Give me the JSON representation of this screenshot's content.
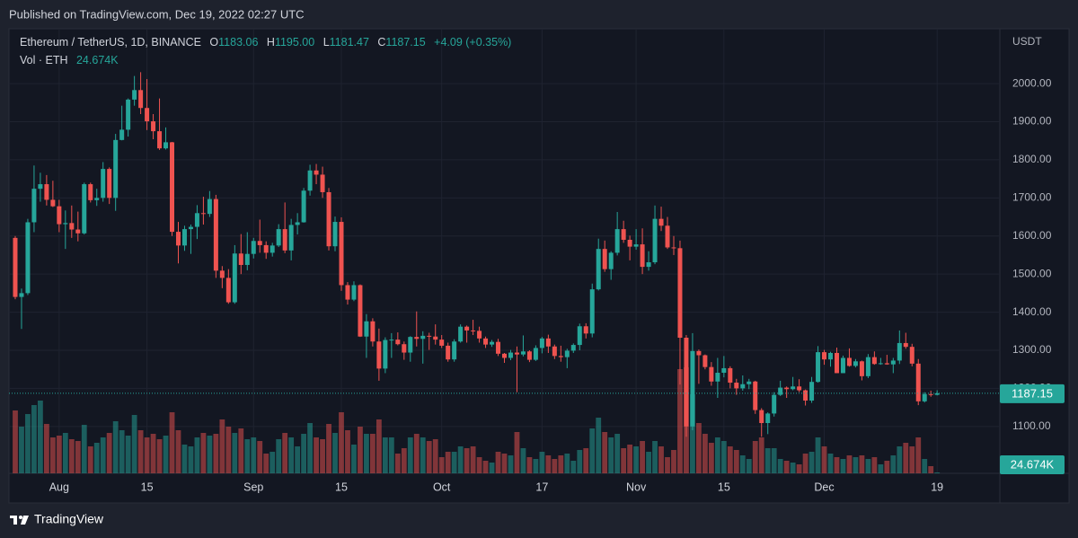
{
  "header": {
    "published": "Published on TradingView.com, Dec 19, 2022 02:27 UTC"
  },
  "footer": {
    "brand": "TradingView"
  },
  "chart_data": {
    "type": "candlestick",
    "title": "Ethereum / TetherUS, 1D, BINANCE",
    "legend": [
      {
        "key": "O",
        "label": "1183.06"
      },
      {
        "key": "H",
        "label": "1195.00"
      },
      {
        "key": "L",
        "label": "1181.47"
      },
      {
        "key": "C",
        "label": "1187.15"
      }
    ],
    "change": "+4.09 (+0.35%)",
    "axis_unit": "USDT",
    "up_color": "#26a69a",
    "down_color": "#ef5350",
    "grid": true,
    "x": [
      "2022-07-25",
      "2022-07-26",
      "2022-07-27",
      "2022-07-28",
      "2022-07-29",
      "2022-07-30",
      "2022-07-31",
      "2022-08-01",
      "2022-08-02",
      "2022-08-03",
      "2022-08-04",
      "2022-08-05",
      "2022-08-06",
      "2022-08-07",
      "2022-08-08",
      "2022-08-09",
      "2022-08-10",
      "2022-08-11",
      "2022-08-12",
      "2022-08-13",
      "2022-08-14",
      "2022-08-15",
      "2022-08-16",
      "2022-08-17",
      "2022-08-18",
      "2022-08-19",
      "2022-08-20",
      "2022-08-21",
      "2022-08-22",
      "2022-08-23",
      "2022-08-24",
      "2022-08-25",
      "2022-08-26",
      "2022-08-27",
      "2022-08-28",
      "2022-08-29",
      "2022-08-30",
      "2022-08-31",
      "2022-09-01",
      "2022-09-02",
      "2022-09-03",
      "2022-09-04",
      "2022-09-05",
      "2022-09-06",
      "2022-09-07",
      "2022-09-08",
      "2022-09-09",
      "2022-09-10",
      "2022-09-11",
      "2022-09-12",
      "2022-09-13",
      "2022-09-14",
      "2022-09-15",
      "2022-09-16",
      "2022-09-17",
      "2022-09-18",
      "2022-09-19",
      "2022-09-20",
      "2022-09-21",
      "2022-09-22",
      "2022-09-23",
      "2022-09-24",
      "2022-09-25",
      "2022-09-26",
      "2022-09-27",
      "2022-09-28",
      "2022-09-29",
      "2022-09-30",
      "2022-10-01",
      "2022-10-02",
      "2022-10-03",
      "2022-10-04",
      "2022-10-05",
      "2022-10-06",
      "2022-10-07",
      "2022-10-08",
      "2022-10-09",
      "2022-10-10",
      "2022-10-11",
      "2022-10-12",
      "2022-10-13",
      "2022-10-14",
      "2022-10-15",
      "2022-10-16",
      "2022-10-17",
      "2022-10-18",
      "2022-10-19",
      "2022-10-20",
      "2022-10-21",
      "2022-10-22",
      "2022-10-23",
      "2022-10-24",
      "2022-10-25",
      "2022-10-26",
      "2022-10-27",
      "2022-10-28",
      "2022-10-29",
      "2022-10-30",
      "2022-10-31",
      "2022-11-01",
      "2022-11-02",
      "2022-11-03",
      "2022-11-04",
      "2022-11-05",
      "2022-11-06",
      "2022-11-07",
      "2022-11-08",
      "2022-11-09",
      "2022-11-10",
      "2022-11-11",
      "2022-11-12",
      "2022-11-13",
      "2022-11-14",
      "2022-11-15",
      "2022-11-16",
      "2022-11-17",
      "2022-11-18",
      "2022-11-19",
      "2022-11-20",
      "2022-11-21",
      "2022-11-22",
      "2022-11-23",
      "2022-11-24",
      "2022-11-25",
      "2022-11-26",
      "2022-11-27",
      "2022-11-28",
      "2022-11-29",
      "2022-11-30",
      "2022-12-01",
      "2022-12-02",
      "2022-12-03",
      "2022-12-04",
      "2022-12-05",
      "2022-12-06",
      "2022-12-07",
      "2022-12-08",
      "2022-12-09",
      "2022-12-10",
      "2022-12-11",
      "2022-12-12",
      "2022-12-13",
      "2022-12-14",
      "2022-12-15",
      "2022-12-16",
      "2022-12-17",
      "2022-12-18",
      "2022-12-19"
    ],
    "open": [
      1595,
      1440,
      1450,
      1636,
      1724,
      1736,
      1695,
      1678,
      1631,
      1634,
      1617,
      1607,
      1736,
      1694,
      1700,
      1776,
      1700,
      1852,
      1879,
      1958,
      1983,
      1936,
      1901,
      1875,
      1830,
      1846,
      1611,
      1575,
      1618,
      1624,
      1660,
      1658,
      1697,
      1509,
      1490,
      1426,
      1554,
      1524,
      1553,
      1587,
      1576,
      1556,
      1575,
      1618,
      1562,
      1629,
      1636,
      1719,
      1772,
      1761,
      1715,
      1573,
      1637,
      1471,
      1433,
      1471,
      1336,
      1376,
      1323,
      1252,
      1327,
      1328,
      1316,
      1294,
      1335,
      1330,
      1338,
      1336,
      1328,
      1312,
      1276,
      1323,
      1362,
      1352,
      1351,
      1331,
      1315,
      1322,
      1291,
      1280,
      1294,
      1289,
      1297,
      1275,
      1306,
      1331,
      1310,
      1285,
      1282,
      1299,
      1314,
      1363,
      1344,
      1460,
      1566,
      1513,
      1556,
      1618,
      1590,
      1572,
      1578,
      1519,
      1531,
      1645,
      1627,
      1570,
      1568,
      1333,
      1100,
      1298,
      1287,
      1256,
      1218,
      1241,
      1253,
      1215,
      1200,
      1211,
      1218,
      1143,
      1109,
      1134,
      1183,
      1202,
      1198,
      1205,
      1195,
      1168,
      1217,
      1295,
      1276,
      1293,
      1240,
      1280,
      1259,
      1271,
      1232,
      1282,
      1264,
      1266,
      1263,
      1273,
      1319,
      1309,
      1265,
      1166,
      1185,
      1183.06
    ],
    "high": [
      1600,
      1462,
      1645,
      1785,
      1766,
      1760,
      1745,
      1695,
      1667,
      1680,
      1664,
      1740,
      1740,
      1724,
      1794,
      1780,
      1868,
      1942,
      1961,
      2020,
      2030,
      2012,
      1920,
      1961,
      1885,
      1847,
      1637,
      1627,
      1630,
      1681,
      1703,
      1718,
      1708,
      1521,
      1513,
      1576,
      1605,
      1610,
      1595,
      1643,
      1586,
      1582,
      1631,
      1688,
      1645,
      1660,
      1726,
      1787,
      1789,
      1782,
      1726,
      1651,
      1649,
      1479,
      1481,
      1473,
      1395,
      1384,
      1357,
      1334,
      1345,
      1347,
      1323,
      1337,
      1402,
      1350,
      1346,
      1368,
      1340,
      1320,
      1329,
      1368,
      1365,
      1380,
      1362,
      1336,
      1327,
      1330,
      1293,
      1301,
      1310,
      1339,
      1300,
      1313,
      1335,
      1341,
      1315,
      1312,
      1304,
      1318,
      1370,
      1371,
      1475,
      1593,
      1588,
      1560,
      1663,
      1640,
      1601,
      1618,
      1620,
      1560,
      1680,
      1677,
      1650,
      1600,
      1588,
      1340,
      1345,
      1302,
      1289,
      1269,
      1280,
      1285,
      1258,
      1225,
      1234,
      1225,
      1220,
      1148,
      1137,
      1190,
      1220,
      1205,
      1230,
      1224,
      1197,
      1230,
      1311,
      1301,
      1296,
      1307,
      1286,
      1305,
      1277,
      1273,
      1290,
      1297,
      1280,
      1288,
      1280,
      1352,
      1346,
      1317,
      1277,
      1190,
      1194,
      1195
    ],
    "low": [
      1434,
      1356,
      1445,
      1610,
      1690,
      1680,
      1676,
      1610,
      1566,
      1595,
      1586,
      1604,
      1688,
      1679,
      1690,
      1684,
      1666,
      1851,
      1861,
      1942,
      1920,
      1878,
      1854,
      1826,
      1827,
      1600,
      1528,
      1561,
      1553,
      1592,
      1630,
      1650,
      1490,
      1463,
      1422,
      1422,
      1500,
      1510,
      1541,
      1556,
      1540,
      1546,
      1571,
      1555,
      1536,
      1604,
      1635,
      1706,
      1736,
      1700,
      1562,
      1560,
      1456,
      1420,
      1429,
      1335,
      1280,
      1310,
      1220,
      1240,
      1280,
      1313,
      1275,
      1270,
      1310,
      1265,
      1301,
      1315,
      1306,
      1270,
      1270,
      1320,
      1320,
      1340,
      1320,
      1306,
      1309,
      1285,
      1267,
      1274,
      1190,
      1284,
      1269,
      1272,
      1292,
      1293,
      1277,
      1270,
      1253,
      1293,
      1300,
      1331,
      1334,
      1457,
      1506,
      1485,
      1549,
      1582,
      1536,
      1564,
      1500,
      1509,
      1526,
      1613,
      1566,
      1550,
      1210,
      1073,
      1090,
      1212,
      1250,
      1207,
      1175,
      1229,
      1200,
      1183,
      1194,
      1198,
      1133,
      1073,
      1080,
      1126,
      1180,
      1175,
      1195,
      1190,
      1155,
      1162,
      1215,
      1262,
      1257,
      1240,
      1240,
      1257,
      1255,
      1221,
      1227,
      1262,
      1262,
      1262,
      1240,
      1264,
      1304,
      1258,
      1156,
      1163,
      1178,
      1181.47
    ],
    "close": [
      1440,
      1450,
      1636,
      1724,
      1736,
      1695,
      1678,
      1631,
      1634,
      1617,
      1607,
      1736,
      1694,
      1700,
      1776,
      1700,
      1852,
      1879,
      1958,
      1983,
      1936,
      1901,
      1875,
      1830,
      1846,
      1611,
      1575,
      1618,
      1624,
      1660,
      1658,
      1697,
      1509,
      1490,
      1426,
      1554,
      1524,
      1553,
      1587,
      1576,
      1556,
      1575,
      1618,
      1562,
      1629,
      1636,
      1719,
      1772,
      1761,
      1715,
      1573,
      1637,
      1471,
      1433,
      1471,
      1336,
      1376,
      1323,
      1252,
      1327,
      1328,
      1316,
      1294,
      1335,
      1330,
      1338,
      1336,
      1328,
      1312,
      1276,
      1323,
      1362,
      1352,
      1351,
      1331,
      1315,
      1322,
      1291,
      1280,
      1294,
      1289,
      1297,
      1275,
      1306,
      1331,
      1310,
      1285,
      1282,
      1299,
      1314,
      1363,
      1344,
      1460,
      1566,
      1513,
      1556,
      1618,
      1590,
      1572,
      1578,
      1519,
      1531,
      1645,
      1627,
      1570,
      1568,
      1333,
      1100,
      1298,
      1287,
      1256,
      1218,
      1241,
      1253,
      1215,
      1200,
      1211,
      1218,
      1143,
      1109,
      1134,
      1183,
      1202,
      1198,
      1205,
      1195,
      1168,
      1217,
      1295,
      1276,
      1293,
      1240,
      1280,
      1259,
      1271,
      1232,
      1282,
      1264,
      1266,
      1263,
      1273,
      1319,
      1309,
      1265,
      1166,
      1185,
      1183.06,
      1187.15
    ],
    "volume": {
      "name": "Vol · ETH",
      "last_label": "24.674K",
      "values": [
        1750000,
        1300000,
        1650000,
        1900000,
        2025000,
        1375000,
        1000000,
        1050000,
        1125000,
        950000,
        900000,
        1350000,
        750000,
        850000,
        1000000,
        1125000,
        1450000,
        1200000,
        1050000,
        1625000,
        1200000,
        1000000,
        1100000,
        950000,
        1050000,
        1700000,
        1200000,
        800000,
        750000,
        1000000,
        1125000,
        1050000,
        1100000,
        1500000,
        1300000,
        1125000,
        1250000,
        950000,
        1000000,
        900000,
        550000,
        600000,
        950000,
        1125000,
        1000000,
        750000,
        1100000,
        1400000,
        1000000,
        950000,
        1375000,
        1125000,
        1700000,
        1200000,
        800000,
        1300000,
        1100000,
        1100000,
        1500000,
        1000000,
        1000000,
        550000,
        700000,
        1000000,
        1100000,
        1000000,
        900000,
        950000,
        450000,
        600000,
        600000,
        750000,
        700000,
        750000,
        450000,
        350000,
        300000,
        600000,
        550000,
        500000,
        1150000,
        700000,
        450000,
        400000,
        600000,
        500000,
        400000,
        500000,
        550000,
        350000,
        650000,
        700000,
        1250000,
        1550000,
        1150000,
        1000000,
        1100000,
        700000,
        800000,
        750000,
        900000,
        600000,
        900000,
        750000,
        450000,
        650000,
        2900000,
        2950000,
        2200000,
        1400000,
        1100000,
        850000,
        1000000,
        900000,
        750000,
        650000,
        500000,
        400000,
        900000,
        1000000,
        700000,
        700000,
        400000,
        350000,
        300000,
        250000,
        550000,
        600000,
        1000000,
        750000,
        550000,
        450000,
        400000,
        500000,
        450000,
        500000,
        400000,
        450000,
        250000,
        350000,
        500000,
        750000,
        850000,
        750000,
        1000000,
        400000,
        200000,
        24674
      ]
    },
    "ylim": [
      977,
      2144
    ],
    "yticks": [
      {
        "value": 1100,
        "label": "1100.00"
      },
      {
        "value": 1200,
        "label": "1200.00"
      },
      {
        "value": 1300,
        "label": "1300.00"
      },
      {
        "value": 1400,
        "label": "1400.00"
      },
      {
        "value": 1500,
        "label": "1500.00"
      },
      {
        "value": 1600,
        "label": "1600.00"
      },
      {
        "value": 1700,
        "label": "1700.00"
      },
      {
        "value": 1800,
        "label": "1800.00"
      },
      {
        "value": 1900,
        "label": "1900.00"
      },
      {
        "value": 2000,
        "label": "2000.00"
      }
    ],
    "xlim": [
      "2022-07-24",
      "2022-12-29"
    ],
    "xticks": [
      {
        "value": "2022-08-01",
        "label": "Aug"
      },
      {
        "value": "2022-08-15",
        "label": "15"
      },
      {
        "value": "2022-09-01",
        "label": "Sep"
      },
      {
        "value": "2022-09-15",
        "label": "15"
      },
      {
        "value": "2022-10-01",
        "label": "Oct"
      },
      {
        "value": "2022-10-17",
        "label": "17"
      },
      {
        "value": "2022-11-01",
        "label": "Nov"
      },
      {
        "value": "2022-11-15",
        "label": "15"
      },
      {
        "value": "2022-12-01",
        "label": "Dec"
      },
      {
        "value": "2022-12-19",
        "label": "19"
      }
    ]
  }
}
